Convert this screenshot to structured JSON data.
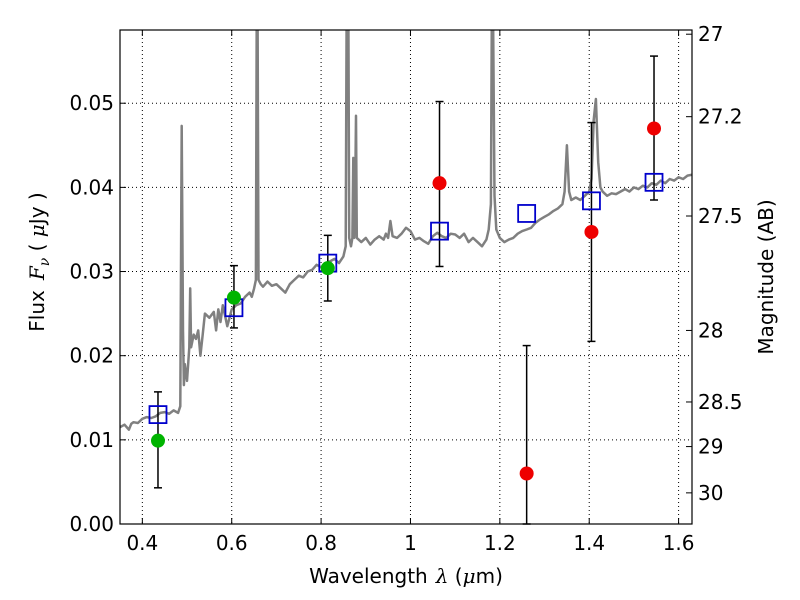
{
  "chart_data": {
    "type": "scatter",
    "xlabel_prefix": "Wavelength",
    "xlabel_symbol": "λ",
    "xlabel_unit_open": " (",
    "xlabel_unit_mu": "μ",
    "xlabel_unit_close": "m)",
    "ylabel_prefix": "Flux",
    "ylabel_symbol": "F",
    "ylabel_subscript": "ν",
    "ylabel_unit_open": " ( ",
    "ylabel_unit_mu": "μ",
    "ylabel_unit_close": "Jy )",
    "y2label": "Magnitude (AB)",
    "xlim": [
      0.35,
      1.63
    ],
    "ylim": [
      0.0,
      0.0587
    ],
    "xticks": [
      {
        "value": 0.4,
        "label": "0.4"
      },
      {
        "value": 0.6,
        "label": "0.6"
      },
      {
        "value": 0.8,
        "label": "0.8"
      },
      {
        "value": 1.0,
        "label": "1"
      },
      {
        "value": 1.2,
        "label": "1.2"
      },
      {
        "value": 1.4,
        "label": "1.4"
      },
      {
        "value": 1.6,
        "label": "1.6"
      }
    ],
    "yticks": [
      {
        "value": 0.0,
        "label": "0.00"
      },
      {
        "value": 0.01,
        "label": "0.01"
      },
      {
        "value": 0.02,
        "label": "0.02"
      },
      {
        "value": 0.03,
        "label": "0.03"
      },
      {
        "value": 0.04,
        "label": "0.04"
      },
      {
        "value": 0.05,
        "label": "0.05"
      }
    ],
    "mag_ticks": [
      {
        "value": 0.0582,
        "label": "27"
      },
      {
        "value": 0.0484,
        "label": "27.2"
      },
      {
        "value": 0.0366,
        "label": "27.5"
      },
      {
        "value": 0.023,
        "label": "28"
      },
      {
        "value": 0.0145,
        "label": "28.5"
      },
      {
        "value": 0.0092,
        "label": "29"
      },
      {
        "value": 0.0037,
        "label": "30"
      }
    ],
    "grid": true,
    "colors": {
      "spectrum": "#808080",
      "model": "#0000cc",
      "green": "#00b400",
      "red": "#ee0000",
      "errorbar": "#000000"
    },
    "spectrum": [
      [
        0.35,
        0.0115
      ],
      [
        0.36,
        0.0118
      ],
      [
        0.37,
        0.0112
      ],
      [
        0.375,
        0.0119
      ],
      [
        0.38,
        0.0121
      ],
      [
        0.39,
        0.012
      ],
      [
        0.4,
        0.0125
      ],
      [
        0.41,
        0.0127
      ],
      [
        0.42,
        0.0126
      ],
      [
        0.43,
        0.0128
      ],
      [
        0.44,
        0.0132
      ],
      [
        0.45,
        0.0133
      ],
      [
        0.46,
        0.0131
      ],
      [
        0.47,
        0.0135
      ],
      [
        0.48,
        0.0132
      ],
      [
        0.485,
        0.014
      ],
      [
        0.488,
        0.0473
      ],
      [
        0.491,
        0.023
      ],
      [
        0.493,
        0.0165
      ],
      [
        0.495,
        0.019
      ],
      [
        0.5,
        0.017
      ],
      [
        0.505,
        0.021
      ],
      [
        0.507,
        0.028
      ],
      [
        0.509,
        0.021
      ],
      [
        0.515,
        0.0225
      ],
      [
        0.52,
        0.022
      ],
      [
        0.525,
        0.023
      ],
      [
        0.53,
        0.02
      ],
      [
        0.535,
        0.0225
      ],
      [
        0.54,
        0.025
      ],
      [
        0.55,
        0.0245
      ],
      [
        0.56,
        0.0252
      ],
      [
        0.565,
        0.023
      ],
      [
        0.57,
        0.0255
      ],
      [
        0.575,
        0.024
      ],
      [
        0.58,
        0.026
      ],
      [
        0.59,
        0.0235
      ],
      [
        0.6,
        0.0255
      ],
      [
        0.61,
        0.026
      ],
      [
        0.62,
        0.0262
      ],
      [
        0.63,
        0.027
      ],
      [
        0.64,
        0.0275
      ],
      [
        0.645,
        0.027
      ],
      [
        0.65,
        0.028
      ],
      [
        0.654,
        0.029
      ],
      [
        0.656,
        0.06
      ],
      [
        0.658,
        0.06
      ],
      [
        0.66,
        0.029
      ],
      [
        0.665,
        0.0285
      ],
      [
        0.67,
        0.0282
      ],
      [
        0.68,
        0.0288
      ],
      [
        0.69,
        0.0283
      ],
      [
        0.7,
        0.0285
      ],
      [
        0.71,
        0.028
      ],
      [
        0.72,
        0.0275
      ],
      [
        0.73,
        0.0285
      ],
      [
        0.74,
        0.029
      ],
      [
        0.75,
        0.0295
      ],
      [
        0.76,
        0.0293
      ],
      [
        0.77,
        0.03
      ],
      [
        0.78,
        0.0302
      ],
      [
        0.79,
        0.0308
      ],
      [
        0.8,
        0.0305
      ],
      [
        0.81,
        0.031
      ],
      [
        0.82,
        0.0312
      ],
      [
        0.83,
        0.0315
      ],
      [
        0.84,
        0.031
      ],
      [
        0.85,
        0.0318
      ],
      [
        0.855,
        0.033
      ],
      [
        0.857,
        0.06
      ],
      [
        0.859,
        0.056
      ],
      [
        0.861,
        0.06
      ],
      [
        0.863,
        0.034
      ],
      [
        0.867,
        0.033
      ],
      [
        0.87,
        0.034
      ],
      [
        0.872,
        0.0435
      ],
      [
        0.874,
        0.034
      ],
      [
        0.876,
        0.0385
      ],
      [
        0.878,
        0.0485
      ],
      [
        0.88,
        0.034
      ],
      [
        0.89,
        0.0335
      ],
      [
        0.9,
        0.034
      ],
      [
        0.91,
        0.0332
      ],
      [
        0.92,
        0.0338
      ],
      [
        0.93,
        0.0342
      ],
      [
        0.94,
        0.0338
      ],
      [
        0.945,
        0.0345
      ],
      [
        0.95,
        0.034
      ],
      [
        0.955,
        0.036
      ],
      [
        0.96,
        0.0342
      ],
      [
        0.97,
        0.034
      ],
      [
        0.98,
        0.0345
      ],
      [
        0.99,
        0.0352
      ],
      [
        1.0,
        0.0348
      ],
      [
        1.01,
        0.0338
      ],
      [
        1.02,
        0.034
      ],
      [
        1.03,
        0.0336
      ],
      [
        1.04,
        0.0333
      ],
      [
        1.05,
        0.0342
      ],
      [
        1.06,
        0.0346
      ],
      [
        1.07,
        0.0342
      ],
      [
        1.08,
        0.034
      ],
      [
        1.09,
        0.0345
      ],
      [
        1.1,
        0.0344
      ],
      [
        1.11,
        0.034
      ],
      [
        1.12,
        0.0345
      ],
      [
        1.13,
        0.0335
      ],
      [
        1.14,
        0.034
      ],
      [
        1.15,
        0.0335
      ],
      [
        1.16,
        0.033
      ],
      [
        1.17,
        0.0338
      ],
      [
        1.175,
        0.035
      ],
      [
        1.18,
        0.038
      ],
      [
        1.182,
        0.06
      ],
      [
        1.185,
        0.06
      ],
      [
        1.188,
        0.039
      ],
      [
        1.192,
        0.035
      ],
      [
        1.2,
        0.034
      ],
      [
        1.21,
        0.0335
      ],
      [
        1.22,
        0.0338
      ],
      [
        1.23,
        0.034
      ],
      [
        1.24,
        0.0345
      ],
      [
        1.25,
        0.0348
      ],
      [
        1.26,
        0.035
      ],
      [
        1.27,
        0.0352
      ],
      [
        1.28,
        0.0358
      ],
      [
        1.29,
        0.0362
      ],
      [
        1.3,
        0.0365
      ],
      [
        1.31,
        0.0368
      ],
      [
        1.32,
        0.0372
      ],
      [
        1.33,
        0.0375
      ],
      [
        1.34,
        0.038
      ],
      [
        1.345,
        0.0395
      ],
      [
        1.35,
        0.045
      ],
      [
        1.355,
        0.0395
      ],
      [
        1.36,
        0.0385
      ],
      [
        1.37,
        0.0388
      ],
      [
        1.38,
        0.0385
      ],
      [
        1.39,
        0.039
      ],
      [
        1.4,
        0.0395
      ],
      [
        1.405,
        0.041
      ],
      [
        1.41,
        0.048
      ],
      [
        1.415,
        0.0505
      ],
      [
        1.42,
        0.043
      ],
      [
        1.425,
        0.04
      ],
      [
        1.43,
        0.0395
      ],
      [
        1.44,
        0.039
      ],
      [
        1.45,
        0.0393
      ],
      [
        1.46,
        0.0392
      ],
      [
        1.47,
        0.0395
      ],
      [
        1.48,
        0.0398
      ],
      [
        1.49,
        0.0395
      ],
      [
        1.5,
        0.04
      ],
      [
        1.51,
        0.0398
      ],
      [
        1.52,
        0.0402
      ],
      [
        1.53,
        0.04
      ],
      [
        1.54,
        0.0405
      ],
      [
        1.55,
        0.0403
      ],
      [
        1.56,
        0.0408
      ],
      [
        1.57,
        0.0405
      ],
      [
        1.58,
        0.041
      ],
      [
        1.59,
        0.0408
      ],
      [
        1.6,
        0.0412
      ],
      [
        1.61,
        0.041
      ],
      [
        1.62,
        0.0414
      ],
      [
        1.63,
        0.0415
      ]
    ],
    "model_points": [
      {
        "x": 0.435,
        "y": 0.013
      },
      {
        "x": 0.605,
        "y": 0.0257
      },
      {
        "x": 0.815,
        "y": 0.031
      },
      {
        "x": 1.065,
        "y": 0.0348
      },
      {
        "x": 1.26,
        "y": 0.0369
      },
      {
        "x": 1.405,
        "y": 0.0384
      },
      {
        "x": 1.545,
        "y": 0.0406
      }
    ],
    "green_points": [
      {
        "x": 0.435,
        "y": 0.0099,
        "err_low": 0.0043,
        "err_high": 0.0157
      },
      {
        "x": 0.605,
        "y": 0.0269,
        "err_low": 0.0233,
        "err_high": 0.0307
      },
      {
        "x": 0.815,
        "y": 0.0304,
        "err_low": 0.0265,
        "err_high": 0.0343
      }
    ],
    "red_points": [
      {
        "x": 1.065,
        "y": 0.0405,
        "err_low": 0.0306,
        "err_high": 0.0502
      },
      {
        "x": 1.26,
        "y": 0.006,
        "err_low": 0.0,
        "err_high": 0.0212
      },
      {
        "x": 1.405,
        "y": 0.0347,
        "err_low": 0.0217,
        "err_high": 0.0477
      },
      {
        "x": 1.545,
        "y": 0.047,
        "err_low": 0.0385,
        "err_high": 0.0556
      }
    ]
  }
}
